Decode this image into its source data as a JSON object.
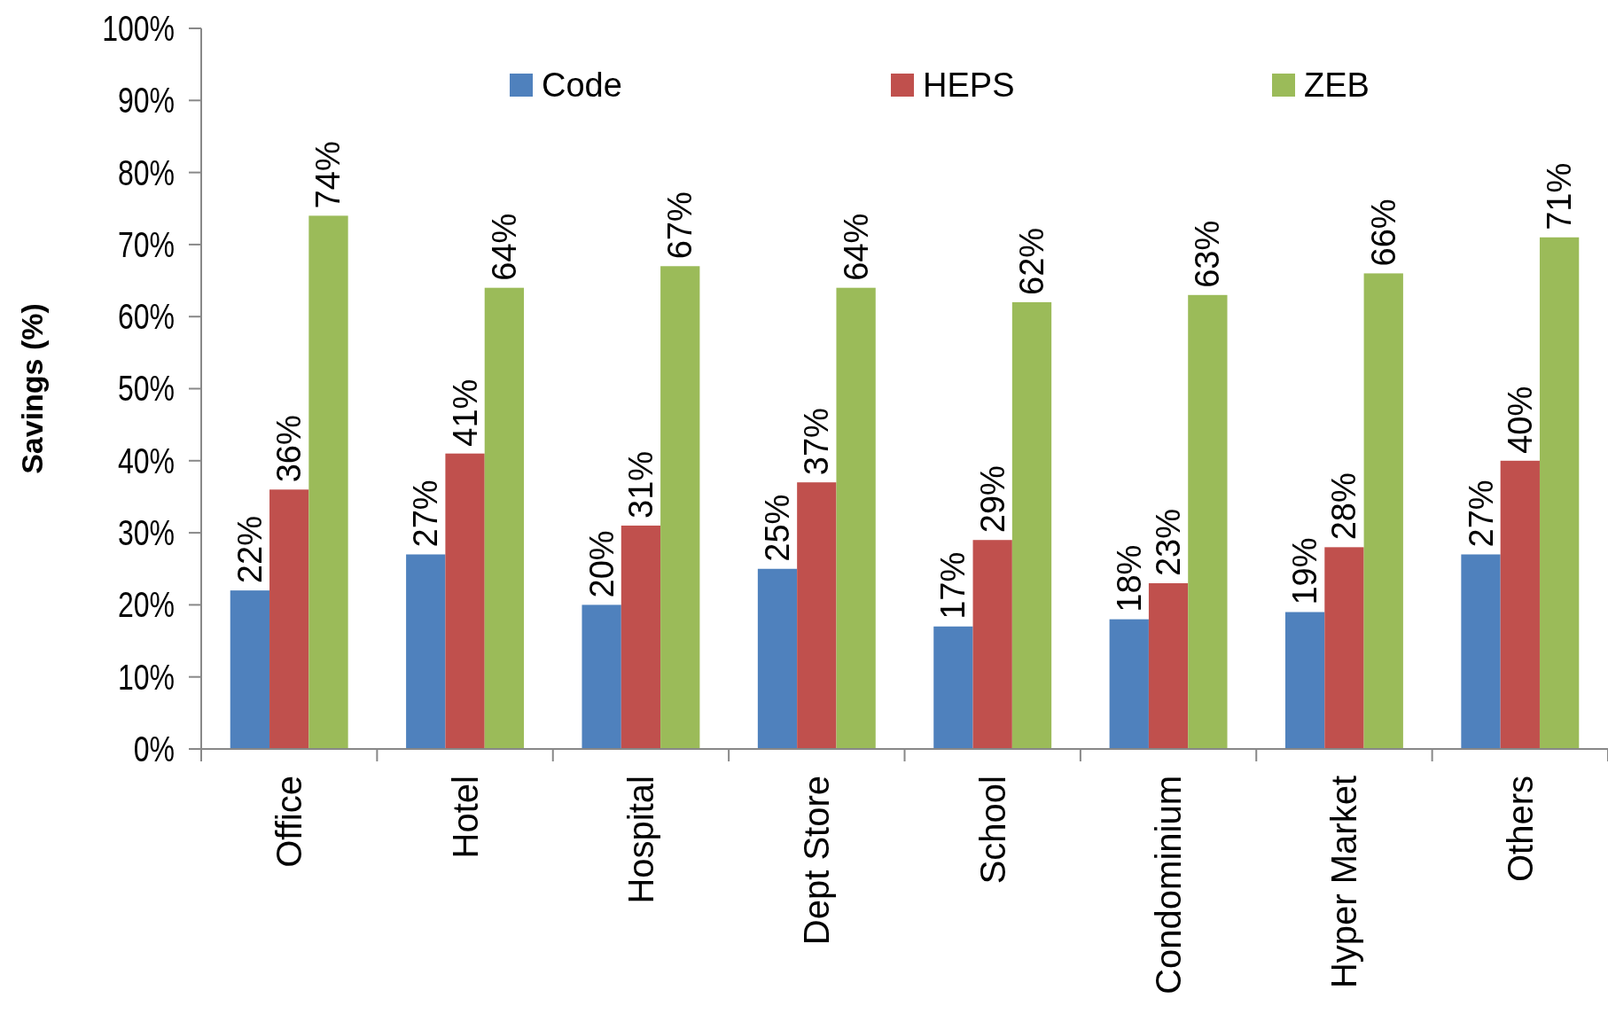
{
  "chart_data": {
    "type": "bar",
    "ylabel": "Savings (%)",
    "categories": [
      "Office",
      "Hotel",
      "Hospital",
      "Dept Store",
      "School",
      "Condominium",
      "Hyper Market",
      "Others"
    ],
    "series": [
      {
        "name": "Code",
        "color": "#4f81bd",
        "values": [
          22,
          27,
          20,
          25,
          17,
          18,
          19,
          27
        ],
        "value_labels": [
          "22%",
          "27%",
          "20%",
          "25%",
          "17%",
          "18%",
          "19%",
          "27%"
        ]
      },
      {
        "name": "HEPS",
        "color": "#c0504d",
        "values": [
          36,
          41,
          31,
          37,
          29,
          23,
          28,
          40
        ],
        "value_labels": [
          "36%",
          "41%",
          "31%",
          "37%",
          "29%",
          "23%",
          "28%",
          "40%"
        ]
      },
      {
        "name": "ZEB",
        "color": "#9bbb59",
        "values": [
          74,
          64,
          67,
          64,
          62,
          63,
          66,
          71
        ],
        "value_labels": [
          "74%",
          "64%",
          "67%",
          "64%",
          "62%",
          "63%",
          "66%",
          "71%"
        ]
      }
    ],
    "ylim": [
      0,
      100
    ],
    "yticks": [
      {
        "value": 0,
        "label": "0%"
      },
      {
        "value": 10,
        "label": "10%"
      },
      {
        "value": 20,
        "label": "20%"
      },
      {
        "value": 30,
        "label": "30%"
      },
      {
        "value": 40,
        "label": "40%"
      },
      {
        "value": 50,
        "label": "50%"
      },
      {
        "value": 60,
        "label": "60%"
      },
      {
        "value": 70,
        "label": "70%"
      },
      {
        "value": 80,
        "label": "80%"
      },
      {
        "value": 90,
        "label": "90%"
      },
      {
        "value": 100,
        "label": "100%"
      }
    ],
    "legend": "top",
    "grid": false
  }
}
